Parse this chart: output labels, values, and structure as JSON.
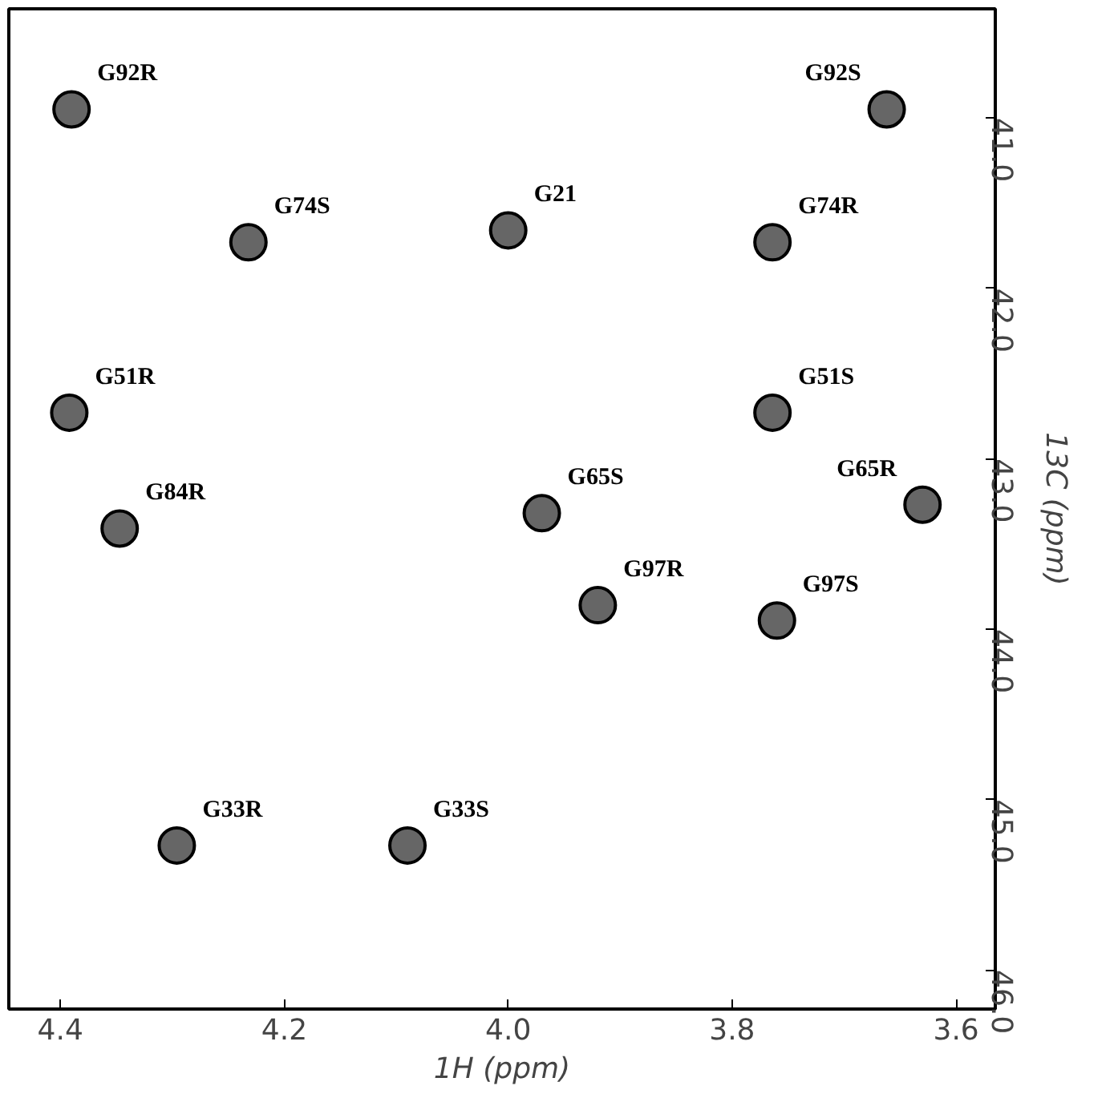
{
  "chart_data": {
    "type": "scatter",
    "xlabel": "1H (ppm)",
    "ylabel": "13C (ppm)",
    "x": [
      4.39,
      3.662,
      4.0,
      4.232,
      3.764,
      4.392,
      3.764,
      4.347,
      3.97,
      3.63,
      3.92,
      3.76,
      4.296,
      4.09
    ],
    "series": [
      {
        "color": "#000000",
        "values": [
          40.95,
          40.95,
          41.66,
          41.73,
          41.73,
          42.73,
          42.73,
          43.41,
          43.32,
          43.27,
          43.86,
          43.95,
          45.27,
          45.27
        ]
      }
    ],
    "marker": "circle",
    "xlim": [
      4.446,
      3.565
    ],
    "ylim": [
      46.23,
      40.36
    ],
    "xticks": [
      4.4,
      4.2,
      {
        "value": 4.0,
        "label": "4.0"
      },
      3.8,
      3.6
    ],
    "yticks": [
      {
        "value": 41,
        "label": "41.0"
      },
      {
        "value": 42,
        "label": "42.0"
      },
      {
        "value": 43,
        "label": "43.0"
      },
      {
        "value": 44,
        "label": "44.0"
      },
      {
        "value": 45,
        "label": "45.0"
      },
      {
        "value": 46,
        "label": "46.0"
      }
    ],
    "annotations": [
      {
        "text": "G92R",
        "x": 4.39,
        "y": 40.95
      },
      {
        "text": "G92S",
        "x": 3.662,
        "y": 40.95
      },
      {
        "text": "G21",
        "x": 4.0,
        "y": 41.66
      },
      {
        "text": "G74S",
        "x": 4.232,
        "y": 41.73
      },
      {
        "text": "G74R",
        "x": 3.764,
        "y": 41.73
      },
      {
        "text": "G51R",
        "x": 4.392,
        "y": 42.73
      },
      {
        "text": "G51S",
        "x": 3.764,
        "y": 42.73
      },
      {
        "text": "G84R",
        "x": 4.347,
        "y": 43.41
      },
      {
        "text": "G65S",
        "x": 3.97,
        "y": 43.32
      },
      {
        "text": "G65R",
        "x": 3.63,
        "y": 43.27
      },
      {
        "text": "G97R",
        "x": 3.92,
        "y": 43.86
      },
      {
        "text": "G97S",
        "x": 3.76,
        "y": 43.95
      },
      {
        "text": "G33R",
        "x": 4.296,
        "y": 45.27
      },
      {
        "text": "G33S",
        "x": 4.09,
        "y": 45.27
      }
    ],
    "grid": false
  }
}
